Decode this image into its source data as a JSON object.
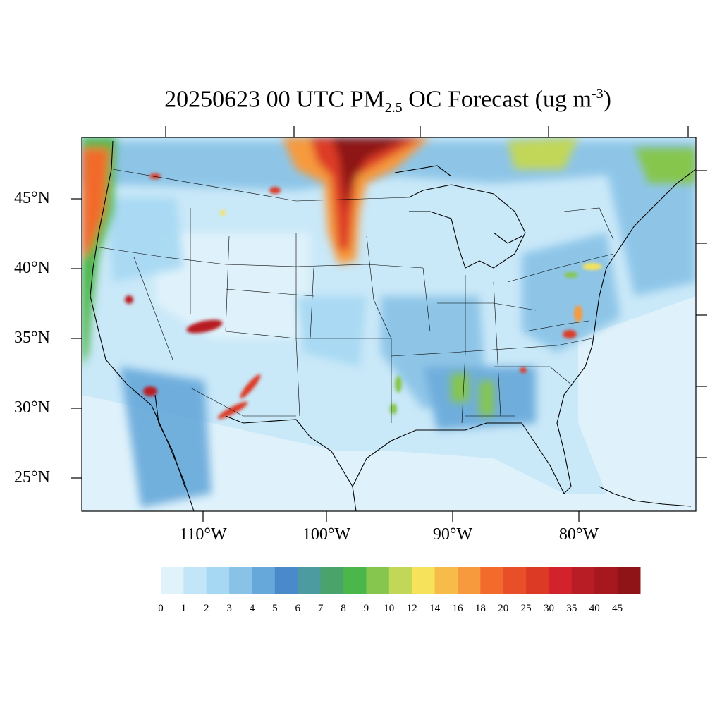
{
  "title": {
    "prefix": "20250623 00 UTC PM",
    "subscript": "2.5",
    "middle": " OC Forecast (ug m",
    "superscript": "-3",
    "suffix": ")"
  },
  "latitude_labels": [
    "45°N",
    "40°N",
    "35°N",
    "30°N",
    "25°N"
  ],
  "longitude_labels": [
    "110°W",
    "100°W",
    "90°W",
    "80°W"
  ],
  "colorbar": {
    "labels": [
      "0",
      "1",
      "2",
      "3",
      "4",
      "5",
      "6",
      "7",
      "8",
      "9",
      "10",
      "12",
      "14",
      "16",
      "18",
      "20",
      "25",
      "30",
      "35",
      "40",
      "45"
    ],
    "colors": [
      "#e0f3fb",
      "#c2e6f7",
      "#a6d8f3",
      "#88c2e6",
      "#66a8da",
      "#4a8acb",
      "#4b9ba0",
      "#4aa36a",
      "#4bb64a",
      "#86c64e",
      "#c2d758",
      "#f7e35b",
      "#f7bb4a",
      "#f79a3e",
      "#f26b2a",
      "#e84f28",
      "#dd3a26",
      "#d2222b",
      "#b81c24",
      "#a6181e",
      "#8e1418"
    ]
  },
  "colors": {
    "background_fill": "#c9e8f8",
    "ocean_fill": "#dff2fb",
    "frame": "#000000"
  }
}
